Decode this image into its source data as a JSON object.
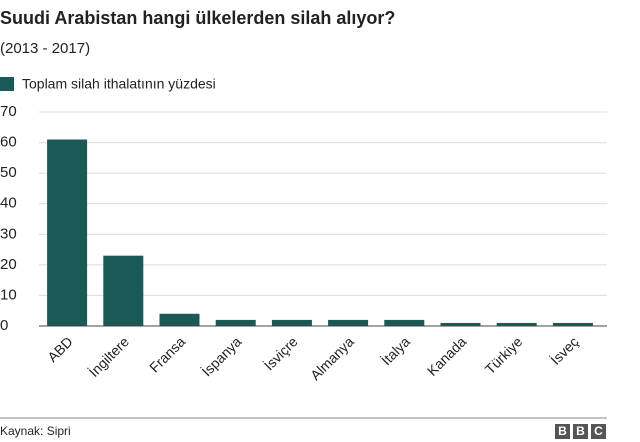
{
  "chart_data": {
    "type": "bar",
    "title": "Suudi Arabistan hangi ülkelerden silah alıyor?",
    "subtitle": "(2013 - 2017)",
    "categories": [
      "ABD",
      "İngiltere",
      "Fransa",
      "İspanya",
      "İsviçre",
      "Almanya",
      "İtalya",
      "Kanada",
      "Türkiye",
      "İsveç"
    ],
    "series": [
      {
        "name": "Toplam silah ithalatının yüzdesi",
        "color": "#1b5957",
        "values": [
          61,
          23,
          4,
          2,
          2,
          2,
          2,
          1,
          1,
          1
        ]
      }
    ],
    "ylim": [
      0,
      70
    ],
    "yticks": [
      0,
      10,
      20,
      30,
      40,
      50,
      60,
      70
    ],
    "grid": true
  },
  "footer": {
    "source": "Kaynak: Sipri",
    "logo": [
      "B",
      "B",
      "C"
    ]
  }
}
